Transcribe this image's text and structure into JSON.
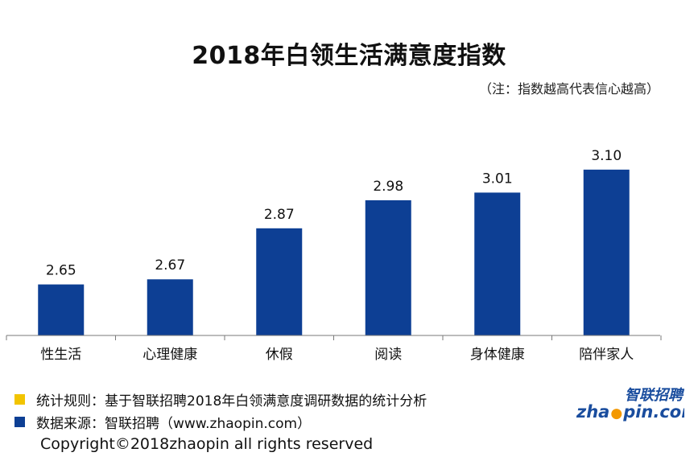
{
  "chart_data": {
    "type": "bar",
    "title": "2018年白领生活满意度指数",
    "subtitle": "（注：指数越高代表信心越高）",
    "categories": [
      "性生活",
      "心理健康",
      "休假",
      "阅读",
      "身体健康",
      "陪伴家人"
    ],
    "values": [
      2.65,
      2.67,
      2.87,
      2.98,
      3.01,
      3.1
    ],
    "value_labels": [
      "2.65",
      "2.67",
      "2.87",
      "2.98",
      "3.01",
      "3.10"
    ],
    "ylim": [
      2.45,
      3.15
    ],
    "grid": false,
    "bar_color": "#0d3f94"
  },
  "notes": [
    {
      "color": "#f2c400",
      "text": "统计规则：基于智联招聘2018年白领满意度调研数据的统计分析"
    },
    {
      "color": "#0d3f94",
      "text": "数据来源：智联招聘（www.zhaopin.com）"
    }
  ],
  "copyright": "Copyright©2018zhaopin all rights reserved",
  "logo": {
    "cn": "智联招聘",
    "en_left": "zha",
    "en_right": "pin.com",
    "primary_color": "#1a4d9e",
    "accent_color": "#f39800"
  }
}
